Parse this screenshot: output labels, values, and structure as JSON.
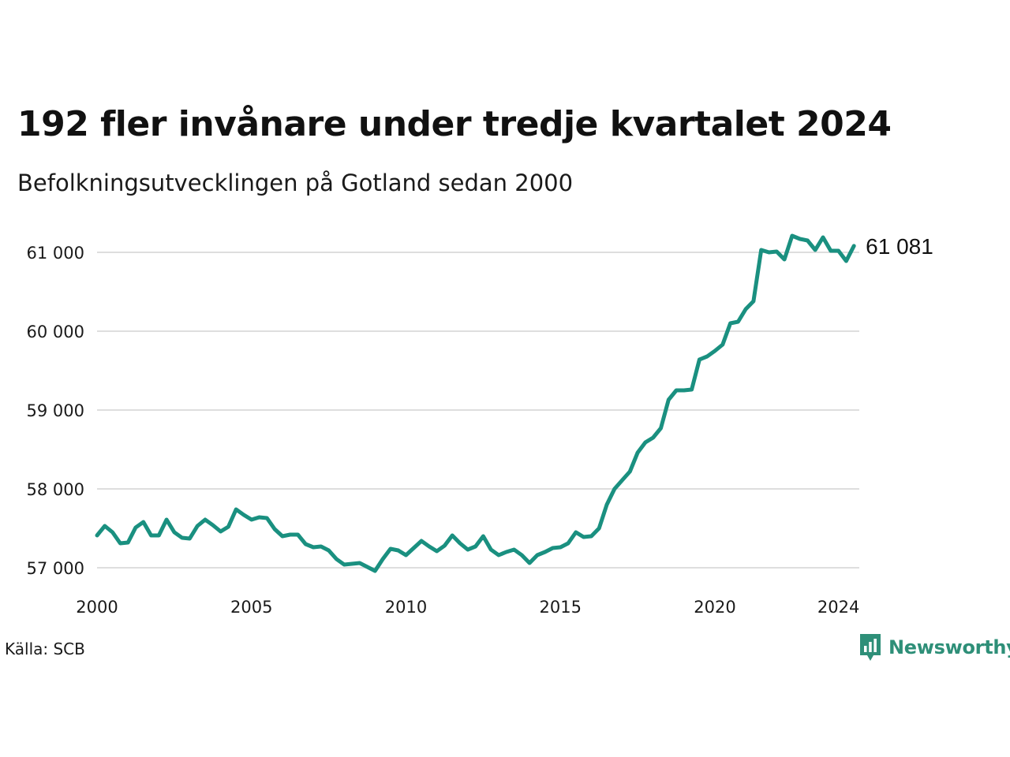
{
  "title": "192 fler invånare under tredje kvartalet 2024",
  "subtitle": "Befolkningsutvecklingen på Gotland sedan 2000",
  "source": "Källa: SCB",
  "brand": {
    "name": "Newsworthy",
    "icon": "newsworthy-logo-icon",
    "color": "#2e8f78"
  },
  "colors": {
    "line": "#1a9080",
    "grid": "#dedede"
  },
  "chart_data": {
    "type": "line",
    "title": "192 fler invånare under tredje kvartalet 2024",
    "subtitle": "Befolkningsutvecklingen på Gotland sedan 2000",
    "xlabel": "",
    "ylabel": "",
    "x_start": 2000.0,
    "x_step": 0.25,
    "xlim": [
      2000,
      2024.75
    ],
    "ylim": [
      57000,
      61200
    ],
    "x_ticks": [
      2000,
      2005,
      2010,
      2015,
      2020,
      2024
    ],
    "x_tick_labels": [
      "2000",
      "2005",
      "2010",
      "2015",
      "2020",
      "2024"
    ],
    "y_ticks": [
      57000,
      58000,
      59000,
      60000,
      61000
    ],
    "y_tick_labels": [
      "57 000",
      "58 000",
      "59 000",
      "60 000",
      "61 000"
    ],
    "grid": true,
    "legend": "none",
    "end_label": "61 081",
    "series": [
      {
        "values": [
          57410,
          57530,
          57450,
          57310,
          57320,
          57510,
          57580,
          57410,
          57410,
          57610,
          57450,
          57380,
          57370,
          57530,
          57610,
          57540,
          57460,
          57520,
          57740,
          57670,
          57610,
          57640,
          57630,
          57490,
          57400,
          57420,
          57420,
          57300,
          57260,
          57270,
          57220,
          57110,
          57040,
          57050,
          57060,
          57010,
          56960,
          57110,
          57240,
          57220,
          57160,
          57250,
          57340,
          57270,
          57210,
          57280,
          57410,
          57310,
          57230,
          57270,
          57400,
          57230,
          57160,
          57200,
          57230,
          57160,
          57060,
          57160,
          57200,
          57250,
          57260,
          57310,
          57450,
          57390,
          57400,
          57500,
          57800,
          58000,
          58110,
          58220,
          58460,
          58590,
          58650,
          58770,
          59130,
          59250,
          59250,
          59260,
          59640,
          59680,
          59750,
          59830,
          60100,
          60120,
          60280,
          60380,
          61030,
          61000,
          61010,
          60910,
          61210,
          61170,
          61150,
          61030,
          61190,
          61020,
          61020,
          60890,
          61081
        ]
      }
    ]
  }
}
